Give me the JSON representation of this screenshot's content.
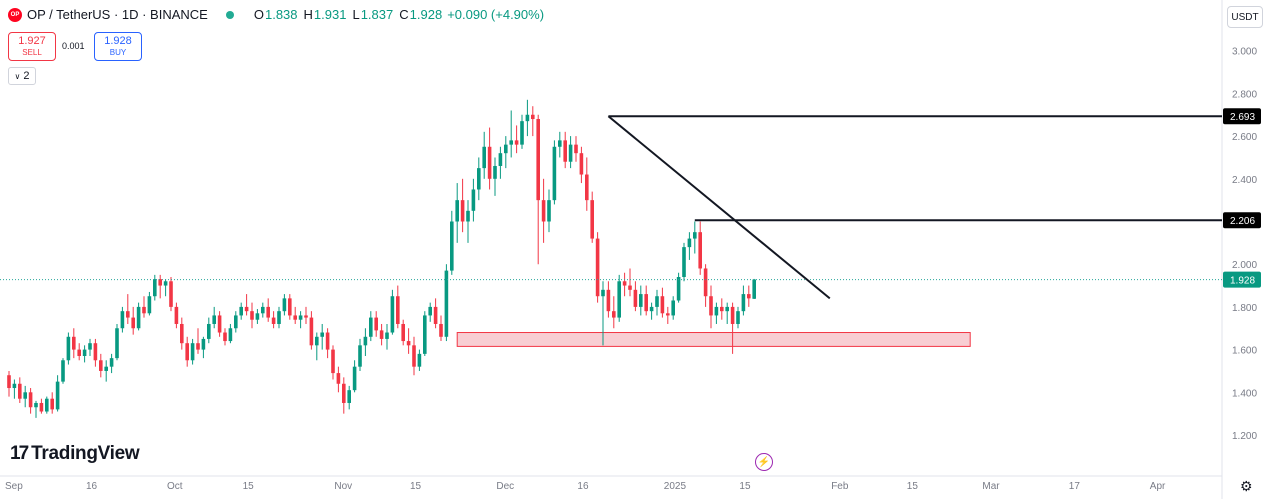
{
  "header": {
    "logo_text": "OP",
    "symbol": "OP / TetherUS · 1D · BINANCE",
    "o_label": "O",
    "o_value": "1.838",
    "h_label": "H",
    "h_value": "1.931",
    "l_label": "L",
    "l_value": "1.837",
    "c_label": "C",
    "c_value": "1.928",
    "change": "+0.090 (+4.90%)"
  },
  "trade": {
    "sell_price": "1.927",
    "sell_label": "SELL",
    "spread": "0.001",
    "buy_price": "1.928",
    "buy_label": "BUY"
  },
  "indicator_badge": "2",
  "currency_button": "USDT",
  "branding": "TradingView",
  "icons": [
    "opt-logo-icon",
    "market-status-dot-icon",
    "chevron-down-icon",
    "tradingview-logo-icon",
    "lightning-icon",
    "gear-icon"
  ],
  "colors": {
    "up": "#089981",
    "down": "#f23645",
    "line": "#131722",
    "zone_fill": "#f7c6cb",
    "zone_border": "#f23645",
    "price_dotted": "#26a69a"
  },
  "chart_data": {
    "type": "candlestick",
    "title": "OP / TetherUS · 1D · BINANCE",
    "xlabel": "",
    "ylabel": "",
    "ylim": [
      1.1,
      3.1
    ],
    "y_ticks": [
      "3.000",
      "2.800",
      "2.600",
      "2.400",
      "2.200",
      "2.000",
      "1.800",
      "1.600",
      "1.400",
      "1.200"
    ],
    "x_ticks": [
      {
        "label": "Sep",
        "t": 0
      },
      {
        "label": "16",
        "t": 15
      },
      {
        "label": "Oct",
        "t": 30
      },
      {
        "label": "15",
        "t": 44
      },
      {
        "label": "Nov",
        "t": 61
      },
      {
        "label": "15",
        "t": 75
      },
      {
        "label": "Dec",
        "t": 91
      },
      {
        "label": "16",
        "t": 106
      },
      {
        "label": "2025",
        "t": 122
      },
      {
        "label": "15",
        "t": 136
      },
      {
        "label": "Feb",
        "t": 153
      },
      {
        "label": "15",
        "t": 167
      },
      {
        "label": "Mar",
        "t": 181
      },
      {
        "label": "17",
        "t": 197
      },
      {
        "label": "Apr",
        "t": 212
      }
    ],
    "ohlc": [
      [
        1.48,
        1.5,
        1.38,
        1.42
      ],
      [
        1.42,
        1.46,
        1.37,
        1.44
      ],
      [
        1.44,
        1.47,
        1.35,
        1.37
      ],
      [
        1.37,
        1.43,
        1.33,
        1.4
      ],
      [
        1.4,
        1.42,
        1.3,
        1.33
      ],
      [
        1.33,
        1.36,
        1.28,
        1.35
      ],
      [
        1.35,
        1.37,
        1.3,
        1.31
      ],
      [
        1.31,
        1.38,
        1.3,
        1.37
      ],
      [
        1.37,
        1.4,
        1.3,
        1.32
      ],
      [
        1.32,
        1.48,
        1.31,
        1.45
      ],
      [
        1.45,
        1.56,
        1.44,
        1.55
      ],
      [
        1.55,
        1.68,
        1.53,
        1.66
      ],
      [
        1.66,
        1.7,
        1.56,
        1.6
      ],
      [
        1.6,
        1.63,
        1.55,
        1.57
      ],
      [
        1.57,
        1.62,
        1.54,
        1.6
      ],
      [
        1.6,
        1.65,
        1.57,
        1.63
      ],
      [
        1.63,
        1.65,
        1.52,
        1.55
      ],
      [
        1.55,
        1.58,
        1.47,
        1.5
      ],
      [
        1.5,
        1.55,
        1.45,
        1.52
      ],
      [
        1.52,
        1.58,
        1.49,
        1.56
      ],
      [
        1.56,
        1.72,
        1.55,
        1.7
      ],
      [
        1.7,
        1.8,
        1.68,
        1.78
      ],
      [
        1.78,
        1.86,
        1.72,
        1.75
      ],
      [
        1.75,
        1.8,
        1.67,
        1.7
      ],
      [
        1.7,
        1.82,
        1.69,
        1.8
      ],
      [
        1.8,
        1.85,
        1.75,
        1.77
      ],
      [
        1.77,
        1.87,
        1.76,
        1.85
      ],
      [
        1.85,
        1.95,
        1.83,
        1.93
      ],
      [
        1.93,
        1.95,
        1.84,
        1.9
      ],
      [
        1.9,
        1.93,
        1.85,
        1.92
      ],
      [
        1.92,
        1.94,
        1.78,
        1.8
      ],
      [
        1.8,
        1.82,
        1.7,
        1.72
      ],
      [
        1.72,
        1.75,
        1.6,
        1.63
      ],
      [
        1.63,
        1.66,
        1.52,
        1.55
      ],
      [
        1.55,
        1.65,
        1.53,
        1.63
      ],
      [
        1.63,
        1.7,
        1.58,
        1.6
      ],
      [
        1.6,
        1.66,
        1.56,
        1.65
      ],
      [
        1.65,
        1.75,
        1.63,
        1.72
      ],
      [
        1.72,
        1.8,
        1.7,
        1.76
      ],
      [
        1.76,
        1.78,
        1.66,
        1.68
      ],
      [
        1.68,
        1.7,
        1.62,
        1.64
      ],
      [
        1.64,
        1.72,
        1.63,
        1.7
      ],
      [
        1.7,
        1.78,
        1.68,
        1.76
      ],
      [
        1.76,
        1.82,
        1.74,
        1.8
      ],
      [
        1.8,
        1.86,
        1.76,
        1.78
      ],
      [
        1.78,
        1.82,
        1.7,
        1.74
      ],
      [
        1.74,
        1.79,
        1.72,
        1.77
      ],
      [
        1.77,
        1.82,
        1.75,
        1.8
      ],
      [
        1.8,
        1.84,
        1.73,
        1.75
      ],
      [
        1.75,
        1.78,
        1.7,
        1.72
      ],
      [
        1.72,
        1.8,
        1.7,
        1.78
      ],
      [
        1.78,
        1.86,
        1.76,
        1.84
      ],
      [
        1.84,
        1.86,
        1.74,
        1.76
      ],
      [
        1.76,
        1.8,
        1.72,
        1.74
      ],
      [
        1.74,
        1.78,
        1.7,
        1.76
      ],
      [
        1.76,
        1.8,
        1.72,
        1.75
      ],
      [
        1.75,
        1.78,
        1.6,
        1.62
      ],
      [
        1.62,
        1.68,
        1.55,
        1.66
      ],
      [
        1.66,
        1.72,
        1.6,
        1.68
      ],
      [
        1.68,
        1.7,
        1.56,
        1.6
      ],
      [
        1.6,
        1.62,
        1.46,
        1.49
      ],
      [
        1.49,
        1.52,
        1.4,
        1.44
      ],
      [
        1.44,
        1.47,
        1.3,
        1.35
      ],
      [
        1.35,
        1.43,
        1.32,
        1.41
      ],
      [
        1.41,
        1.55,
        1.4,
        1.52
      ],
      [
        1.52,
        1.65,
        1.5,
        1.62
      ],
      [
        1.62,
        1.7,
        1.57,
        1.66
      ],
      [
        1.66,
        1.78,
        1.64,
        1.75
      ],
      [
        1.75,
        1.78,
        1.66,
        1.69
      ],
      [
        1.69,
        1.72,
        1.62,
        1.65
      ],
      [
        1.65,
        1.72,
        1.6,
        1.68
      ],
      [
        1.68,
        1.88,
        1.67,
        1.85
      ],
      [
        1.85,
        1.9,
        1.7,
        1.72
      ],
      [
        1.72,
        1.74,
        1.62,
        1.64
      ],
      [
        1.64,
        1.7,
        1.58,
        1.62
      ],
      [
        1.62,
        1.66,
        1.48,
        1.52
      ],
      [
        1.52,
        1.6,
        1.5,
        1.58
      ],
      [
        1.58,
        1.78,
        1.57,
        1.76
      ],
      [
        1.76,
        1.82,
        1.73,
        1.8
      ],
      [
        1.8,
        1.84,
        1.7,
        1.72
      ],
      [
        1.72,
        1.76,
        1.64,
        1.66
      ],
      [
        1.66,
        2.0,
        1.64,
        1.97
      ],
      [
        1.97,
        2.25,
        1.95,
        2.2
      ],
      [
        2.2,
        2.38,
        2.1,
        2.3
      ],
      [
        2.3,
        2.4,
        2.15,
        2.2
      ],
      [
        2.2,
        2.3,
        2.1,
        2.25
      ],
      [
        2.25,
        2.4,
        2.2,
        2.35
      ],
      [
        2.35,
        2.5,
        2.3,
        2.45
      ],
      [
        2.45,
        2.62,
        2.4,
        2.55
      ],
      [
        2.55,
        2.64,
        2.35,
        2.4
      ],
      [
        2.4,
        2.5,
        2.32,
        2.46
      ],
      [
        2.46,
        2.55,
        2.4,
        2.52
      ],
      [
        2.52,
        2.6,
        2.45,
        2.56
      ],
      [
        2.56,
        2.72,
        2.5,
        2.58
      ],
      [
        2.58,
        2.65,
        2.52,
        2.56
      ],
      [
        2.56,
        2.7,
        2.54,
        2.67
      ],
      [
        2.67,
        2.77,
        2.6,
        2.7
      ],
      [
        2.7,
        2.74,
        2.6,
        2.68
      ],
      [
        2.68,
        2.7,
        2.0,
        2.3
      ],
      [
        2.3,
        2.4,
        2.1,
        2.2
      ],
      [
        2.2,
        2.35,
        2.15,
        2.3
      ],
      [
        2.3,
        2.58,
        2.28,
        2.55
      ],
      [
        2.55,
        2.62,
        2.5,
        2.58
      ],
      [
        2.58,
        2.62,
        2.45,
        2.48
      ],
      [
        2.48,
        2.6,
        2.45,
        2.56
      ],
      [
        2.56,
        2.6,
        2.48,
        2.52
      ],
      [
        2.52,
        2.55,
        2.38,
        2.42
      ],
      [
        2.42,
        2.5,
        2.25,
        2.3
      ],
      [
        2.3,
        2.34,
        2.1,
        2.12
      ],
      [
        2.12,
        2.15,
        1.82,
        1.85
      ],
      [
        1.85,
        1.92,
        1.62,
        1.88
      ],
      [
        1.88,
        1.92,
        1.75,
        1.78
      ],
      [
        1.78,
        1.85,
        1.7,
        1.75
      ],
      [
        1.75,
        1.95,
        1.73,
        1.92
      ],
      [
        1.92,
        1.96,
        1.85,
        1.9
      ],
      [
        1.9,
        1.98,
        1.85,
        1.88
      ],
      [
        1.88,
        1.92,
        1.78,
        1.8
      ],
      [
        1.8,
        1.9,
        1.76,
        1.86
      ],
      [
        1.86,
        1.9,
        1.76,
        1.78
      ],
      [
        1.78,
        1.82,
        1.74,
        1.8
      ],
      [
        1.8,
        1.88,
        1.76,
        1.85
      ],
      [
        1.85,
        1.89,
        1.75,
        1.77
      ],
      [
        1.77,
        1.8,
        1.72,
        1.76
      ],
      [
        1.76,
        1.85,
        1.74,
        1.83
      ],
      [
        1.83,
        1.96,
        1.82,
        1.94
      ],
      [
        1.94,
        2.1,
        1.92,
        2.08
      ],
      [
        2.08,
        2.15,
        2.02,
        2.12
      ],
      [
        2.12,
        2.2,
        2.05,
        2.15
      ],
      [
        2.15,
        2.2,
        1.95,
        1.98
      ],
      [
        1.98,
        2.0,
        1.8,
        1.85
      ],
      [
        1.85,
        1.9,
        1.7,
        1.76
      ],
      [
        1.76,
        1.82,
        1.72,
        1.8
      ],
      [
        1.8,
        1.84,
        1.74,
        1.78
      ],
      [
        1.78,
        1.82,
        1.72,
        1.8
      ],
      [
        1.8,
        1.82,
        1.58,
        1.72
      ],
      [
        1.72,
        1.8,
        1.7,
        1.78
      ],
      [
        1.78,
        1.9,
        1.76,
        1.86
      ],
      [
        1.86,
        1.9,
        1.8,
        1.84
      ],
      [
        1.838,
        1.931,
        1.837,
        1.928
      ]
    ],
    "current_price": 1.928,
    "price_labels": [
      "2.693",
      "2.206",
      "1.928"
    ],
    "horizontal_lines": [
      {
        "y": 2.693,
        "from_t": 111
      },
      {
        "y": 2.206,
        "from_t": 127
      }
    ],
    "trend_line": {
      "from": [
        111,
        2.693
      ],
      "to": [
        152,
        1.84
      ]
    },
    "support_zone": {
      "y_low": 1.615,
      "y_high": 1.68,
      "from_t": 83,
      "to_t": 178
    }
  }
}
